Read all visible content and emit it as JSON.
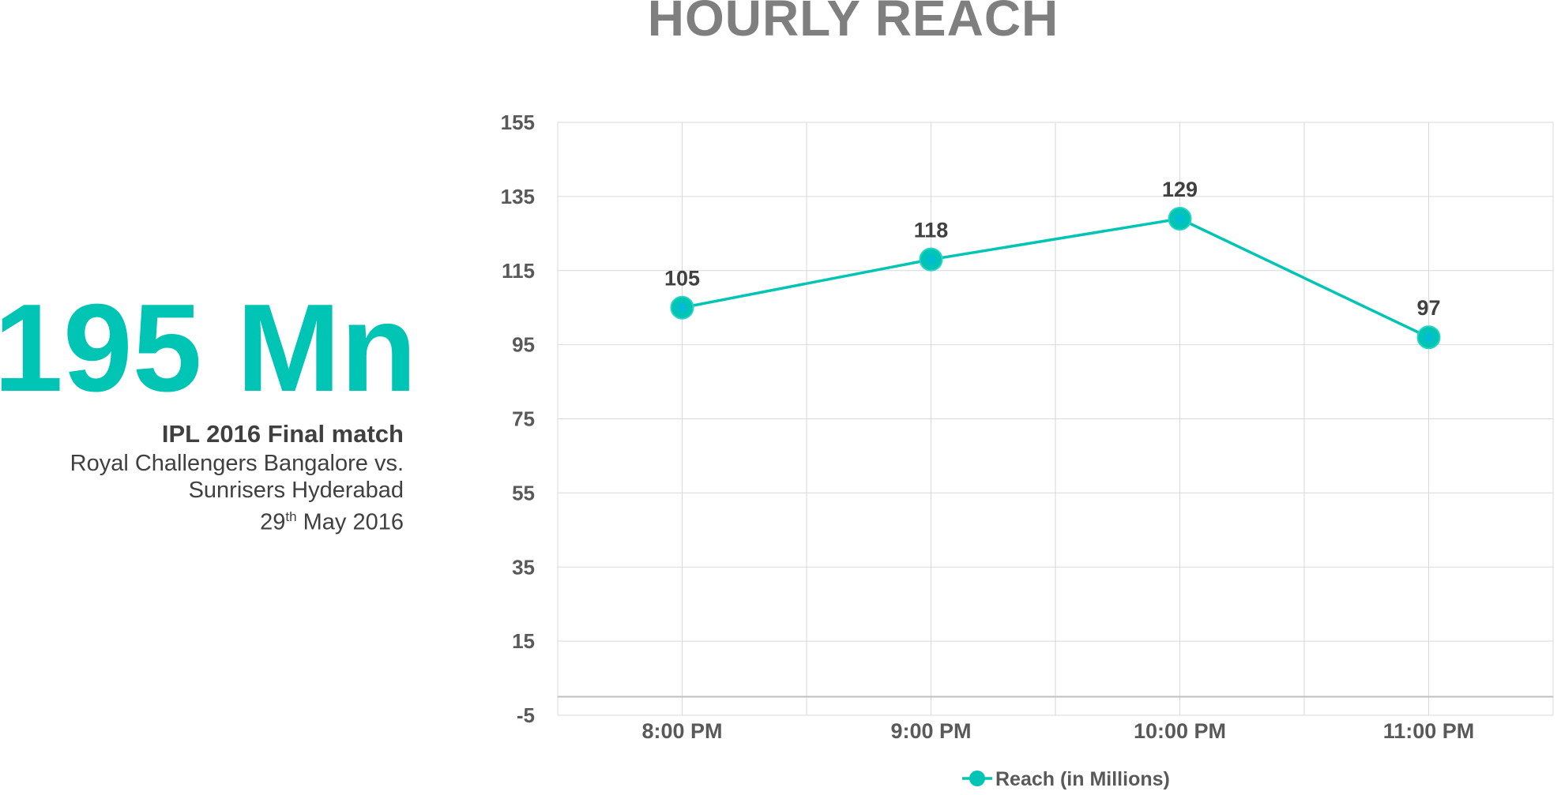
{
  "headline": {
    "figure": "195 Mn",
    "event": "IPL 2016 Final match",
    "teams_line1": "Royal Challengers Bangalore vs.",
    "teams_line2": "Sunrisers Hyderabad",
    "date_day": "29",
    "date_suffix": "th",
    "date_rest": " May 2016"
  },
  "colors": {
    "accent": "#00c4b4",
    "marker": "#00bcd4",
    "title": "#7f7f7f",
    "text": "#404040",
    "grid": "#d9d9d9"
  },
  "chart_data": {
    "type": "line",
    "title": "HOURLY REACH",
    "categories": [
      "8:00 PM",
      "9:00 PM",
      "10:00 PM",
      "11:00 PM"
    ],
    "series": [
      {
        "name": "Reach (in Millions)",
        "values": [
          105,
          118,
          129,
          97
        ]
      }
    ],
    "ylim": [
      -5,
      155
    ],
    "yticks": [
      155,
      135,
      115,
      95,
      75,
      55,
      35,
      15,
      -5
    ],
    "data_labels": [
      "105",
      "118",
      "129",
      "97"
    ],
    "grid": true,
    "legend": "bottom"
  }
}
